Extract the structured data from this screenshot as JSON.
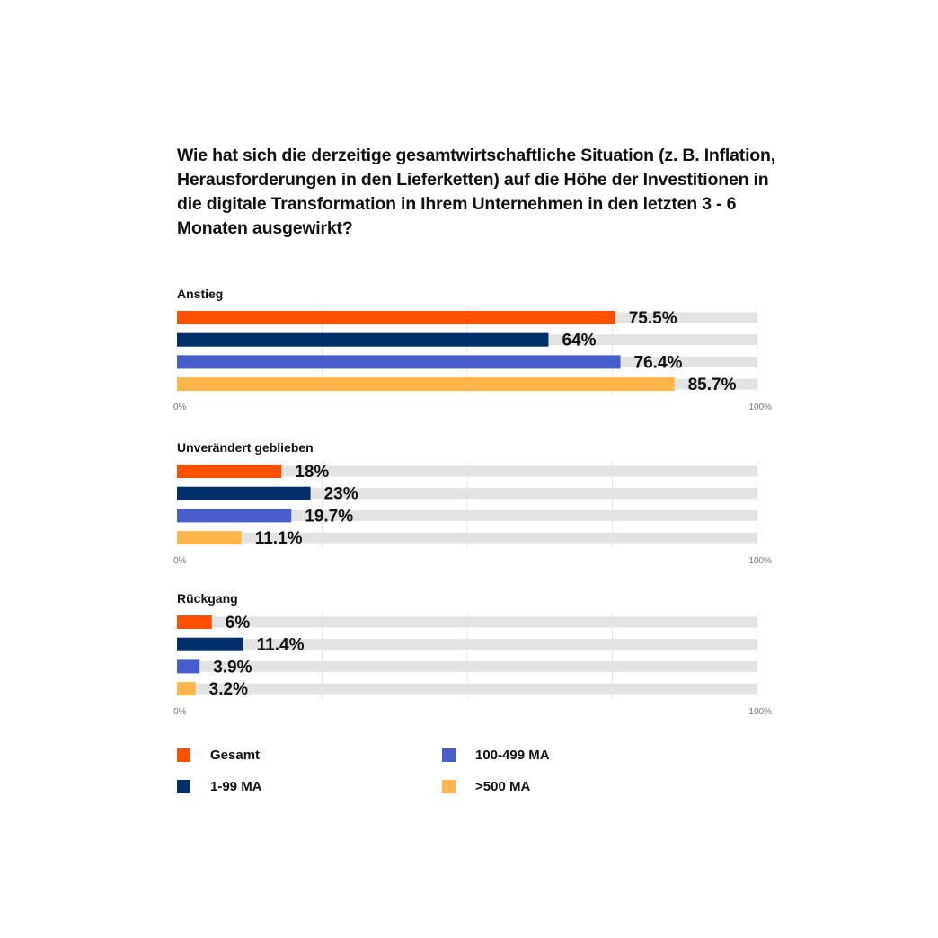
{
  "chart_data": {
    "type": "bar",
    "orientation": "horizontal",
    "title": "Wie hat sich die derzeitige gesamtwirtschaftliche Situation (z. B. Inflation, Herausforderungen in den Lieferketten) auf die Höhe der Investitionen in die digitale Transformation in Ihrem Unternehmen in den letzten 3 - 6 Monaten ausgewirkt?",
    "xlim": [
      0,
      100
    ],
    "tick_labels": [
      "0%",
      "100%"
    ],
    "grid": true,
    "legend_position": "bottom",
    "series": [
      {
        "name": "Gesamt",
        "color": "#FF5000"
      },
      {
        "name": "1-99 MA",
        "color": "#002F6C"
      },
      {
        "name": "100-499 MA",
        "color": "#465DCB"
      },
      {
        "name": ">500 MA",
        "color": "#FFB549"
      }
    ],
    "panels": [
      {
        "category": "Anstieg",
        "values": [
          75.5,
          64,
          76.4,
          85.7
        ],
        "labels": [
          "75.5%",
          "64%",
          "76.4%",
          "85.7%"
        ]
      },
      {
        "category": "Unverändert geblieben",
        "values": [
          18,
          23,
          19.7,
          11.1
        ],
        "labels": [
          "18%",
          "23%",
          "19.7%",
          "11.1%"
        ]
      },
      {
        "category": "Rückgang",
        "values": [
          6,
          11.4,
          3.9,
          3.2
        ],
        "labels": [
          "6%",
          "11.4%",
          "3.9%",
          "3.2%"
        ]
      }
    ]
  }
}
